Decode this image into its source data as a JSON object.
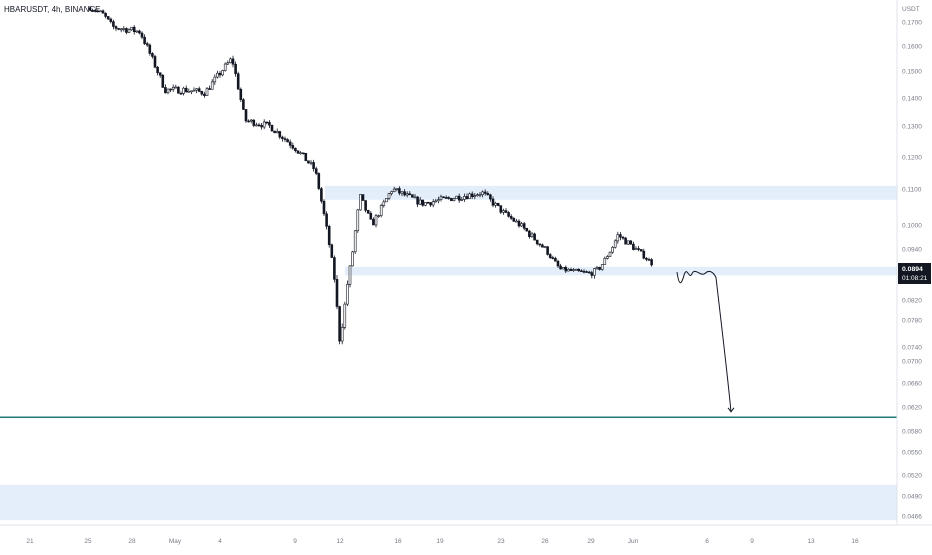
{
  "header": {
    "symbol_label": "HBARUSDT, 4h, BINANCE"
  },
  "price_scale": {
    "currency": "USDT",
    "ticks": [
      "0.1700",
      "0.1600",
      "0.1500",
      "0.1400",
      "0.1300",
      "0.1200",
      "0.1100",
      "0.1000",
      "0.0940",
      "0.0860",
      "0.0820",
      "0.0780",
      "0.0740",
      "0.0700",
      "0.0660",
      "0.0620",
      "0.0580",
      "0.0550",
      "0.0520",
      "0.0490",
      "0.0466"
    ],
    "current_price": "0.0894",
    "countdown": "01:08:21"
  },
  "time_scale": {
    "ticks": [
      "21",
      "25",
      "28",
      "May",
      "4",
      "9",
      "12",
      "16",
      "19",
      "23",
      "26",
      "29",
      "Jun",
      "6",
      "9",
      "13",
      "16"
    ]
  },
  "colors": {
    "candle": "#131722",
    "zone_fill": "#e3eefa",
    "support_line": "#26787a",
    "price_badge": "#131722",
    "axis_text": "#787b86",
    "grid_border": "#e0e3eb"
  },
  "chart_data": {
    "type": "candlestick",
    "symbol": "HBARUSDT",
    "interval": "4h",
    "exchange": "BINANCE",
    "ylabel": "USDT",
    "zones": [
      {
        "low": 0.107,
        "high": 0.111
      },
      {
        "low": 0.0858,
        "high": 0.0883
      },
      {
        "low": 0.0461,
        "high": 0.0506
      }
    ],
    "horizontal_lines": [
      {
        "price": 0.0608
      }
    ],
    "projection": {
      "start": 0.0866,
      "wave": [
        0.0842,
        0.0858,
        0.085,
        0.0861,
        0.0855,
        0.0862,
        0.0868
      ],
      "target": 0.0612
    },
    "key_prices": [
      0.18,
      0.168,
      0.143,
      0.155,
      0.132,
      0.13,
      0.123,
      0.116,
      0.094,
      0.0745,
      0.088,
      0.108,
      0.1,
      0.11,
      0.106,
      0.109,
      0.103,
      0.094,
      0.0875,
      0.0862,
      0.088,
      0.0975,
      0.0935,
      0.0894
    ]
  }
}
